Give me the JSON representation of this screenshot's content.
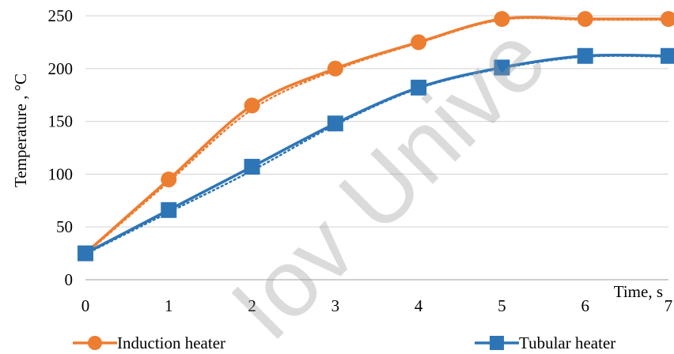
{
  "chart_data": {
    "type": "line",
    "title": "",
    "xlabel": "Time, s",
    "ylabel": "Temperature , °C",
    "x": [
      0,
      1,
      2,
      3,
      4,
      5,
      6,
      7
    ],
    "xlim": [
      0,
      7
    ],
    "ylim": [
      0,
      250
    ],
    "x_ticks": [
      "0",
      "1",
      "2",
      "3",
      "4",
      "5",
      "6",
      "7"
    ],
    "y_ticks": [
      "0",
      "50",
      "100",
      "150",
      "200",
      "250"
    ],
    "grid": "horizontal",
    "legend_position": "bottom",
    "series": [
      {
        "name": "Induction heater",
        "color": "#ED7D31",
        "marker": "circle",
        "values": [
          25,
          95,
          165,
          200,
          225,
          247,
          247,
          247
        ],
        "trendline": "dotted"
      },
      {
        "name": "Tubular heater",
        "color": "#2E75B6",
        "marker": "square",
        "values": [
          25,
          66,
          107,
          148,
          182,
          201,
          212,
          212
        ],
        "trendline": "dotted"
      }
    ]
  },
  "watermark": "Iov Unive"
}
